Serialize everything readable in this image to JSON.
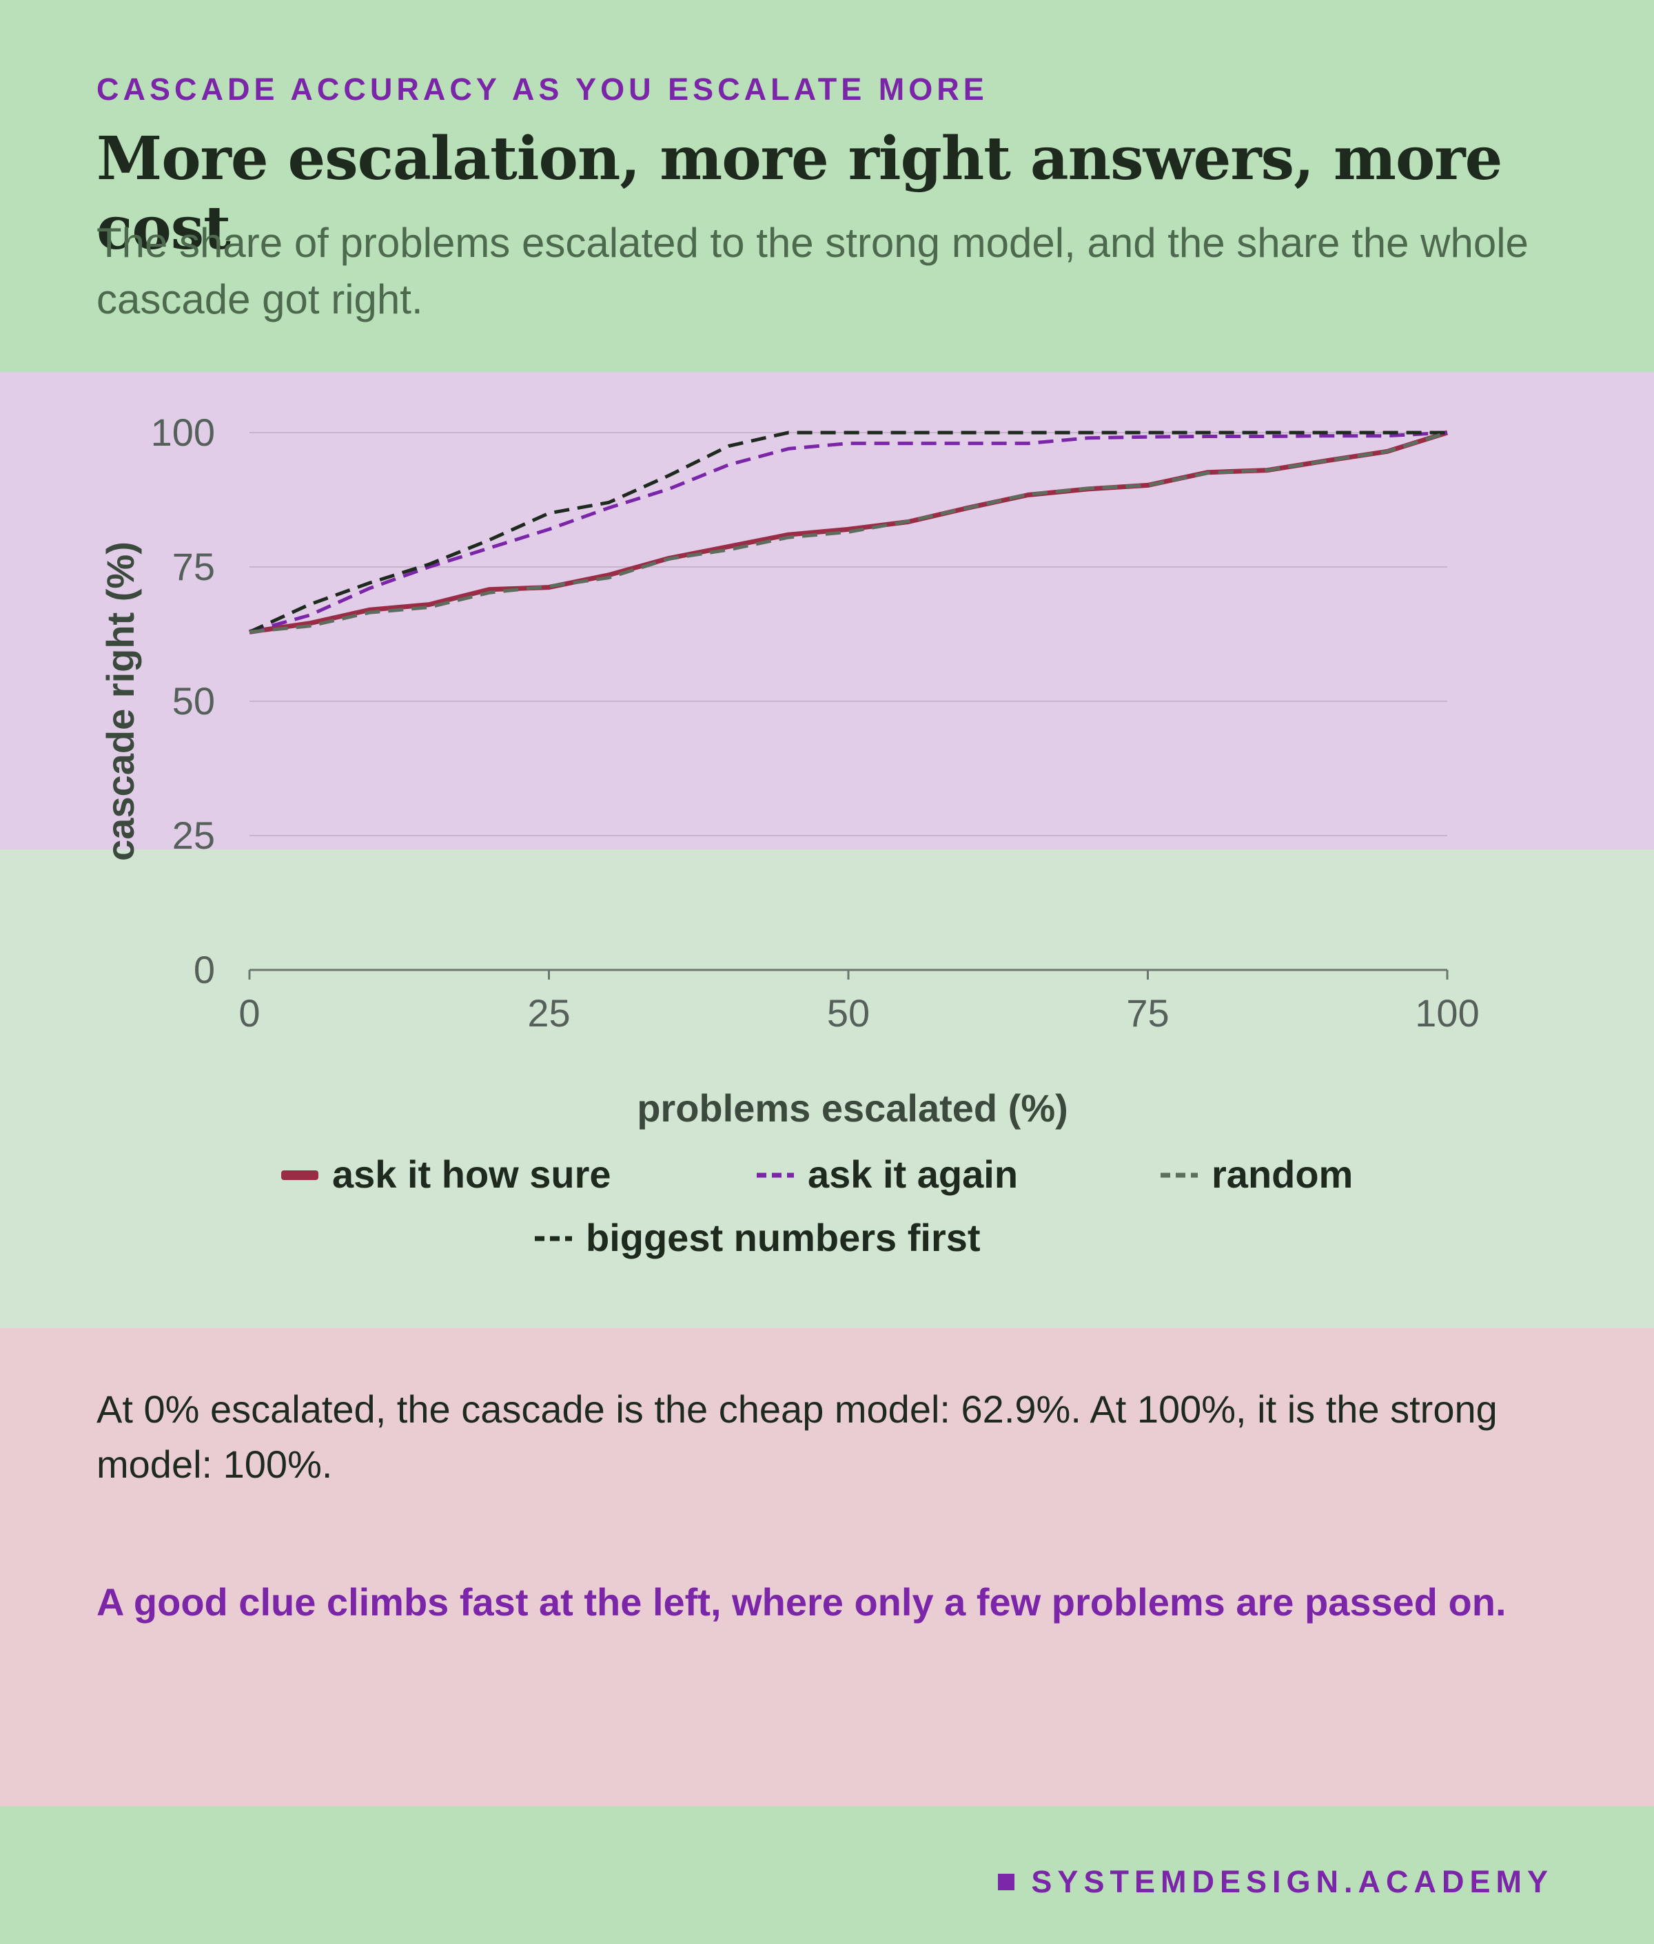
{
  "header": {
    "eyebrow": "CASCADE ACCURACY AS YOU ESCALATE MORE",
    "title": "More escalation, more right answers, more cost",
    "subtitle": "The share of problems escalated to the strong model, and the share the whole cascade got right."
  },
  "chart_data": {
    "type": "line",
    "xlabel": "problems escalated (%)",
    "ylabel": "cascade right (%)",
    "xlim": [
      0,
      100
    ],
    "ylim": [
      0,
      100
    ],
    "xticks": [
      "0",
      "25",
      "50",
      "75",
      "100"
    ],
    "yticks": [
      "0",
      "25",
      "50",
      "75",
      "100"
    ],
    "grid": true,
    "legend_position": "bottom",
    "x": [
      0,
      5,
      10,
      15,
      20,
      25,
      30,
      35,
      40,
      45,
      50,
      55,
      60,
      65,
      70,
      75,
      80,
      85,
      90,
      95,
      100
    ],
    "series": [
      {
        "name": "ask it how sure",
        "color": "#9b2c46",
        "dash": "solid",
        "values": [
          62.9,
          64.5,
          67.0,
          68.0,
          70.8,
          71.2,
          73.5,
          76.6,
          78.8,
          81.0,
          82.0,
          83.4,
          86.0,
          88.4,
          89.5,
          90.2,
          92.6,
          93.0,
          94.8,
          96.5,
          100.0
        ]
      },
      {
        "name": "ask it again",
        "color": "#7b25a8",
        "dash": "dashed",
        "values": [
          62.9,
          66.0,
          71.0,
          75.0,
          78.5,
          82.0,
          86.0,
          89.5,
          94.0,
          97.0,
          98.0,
          98.0,
          98.0,
          98.0,
          99.0,
          99.2,
          99.3,
          99.3,
          99.4,
          99.4,
          100.0
        ]
      },
      {
        "name": "random",
        "color": "#5e6e5e",
        "dash": "dashed",
        "values": [
          62.9,
          64.0,
          66.5,
          67.5,
          70.2,
          71.4,
          73.0,
          76.5,
          78.2,
          80.5,
          81.5,
          83.5,
          86.0,
          88.5,
          89.6,
          90.2,
          92.5,
          93.0,
          94.8,
          96.5,
          100.0
        ]
      },
      {
        "name": "biggest numbers first",
        "color": "#1f2a1f",
        "dash": "dashed",
        "values": [
          62.9,
          68.0,
          72.0,
          75.5,
          80.0,
          85.0,
          87.0,
          92.0,
          97.5,
          100.0,
          100.0,
          100.0,
          100.0,
          100.0,
          100.0,
          100.0,
          100.0,
          100.0,
          100.0,
          100.0,
          100.0
        ]
      }
    ]
  },
  "notes": {
    "body": "At 0% escalated, the cascade is the cheap model: 62.9%. At 100%, it is the strong model: 100%.",
    "takeaway": "A good clue climbs fast at the left, where only a few problems are passed on."
  },
  "footer": {
    "brand": "SYSTEMDESIGN.ACADEMY"
  }
}
